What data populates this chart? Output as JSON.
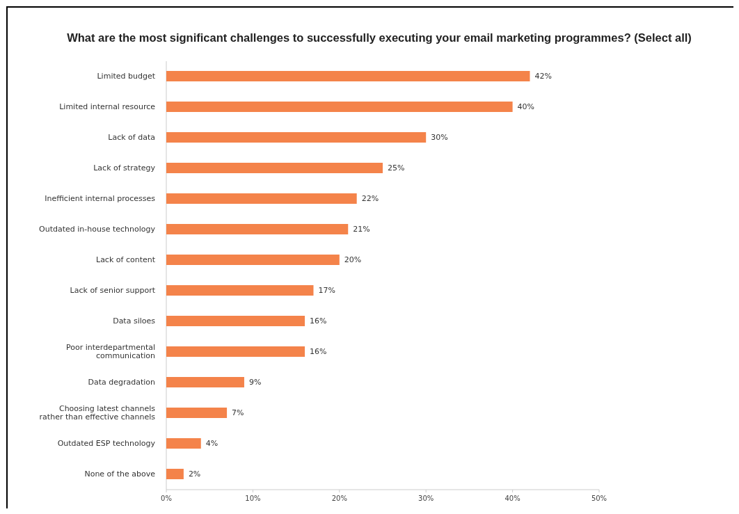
{
  "chart_data": {
    "type": "bar",
    "orientation": "horizontal",
    "title": "What are the most significant challenges to successfully executing your email marketing programmes? (Select all)",
    "categories": [
      "Limited budget",
      "Limited internal resource",
      "Lack of data",
      "Lack of strategy",
      "Inefficient internal processes",
      "Outdated in-house technology",
      "Lack of content",
      "Lack of senior support",
      "Data siloes",
      "Poor interdepartmental communication",
      "Data degradation",
      "Choosing latest channels rather than effective channels",
      "Outdated ESP technology",
      "None of the above"
    ],
    "values": [
      42,
      40,
      30,
      25,
      22,
      21,
      20,
      17,
      16,
      16,
      9,
      7,
      4,
      2
    ],
    "value_labels": [
      "42%",
      "40%",
      "30%",
      "25%",
      "22%",
      "21%",
      "20%",
      "17%",
      "16%",
      "16%",
      "9%",
      "7%",
      "4%",
      "2%"
    ],
    "color": "#f4834a",
    "xlim": [
      0,
      50
    ],
    "xticks": [
      {
        "value": 0,
        "label": "0%"
      },
      {
        "value": 10,
        "label": "10%"
      },
      {
        "value": 20,
        "label": "20%"
      },
      {
        "value": 30,
        "label": "30%"
      },
      {
        "value": 40,
        "label": "40%"
      },
      {
        "value": 50,
        "label": "50%"
      }
    ],
    "grid": false
  }
}
